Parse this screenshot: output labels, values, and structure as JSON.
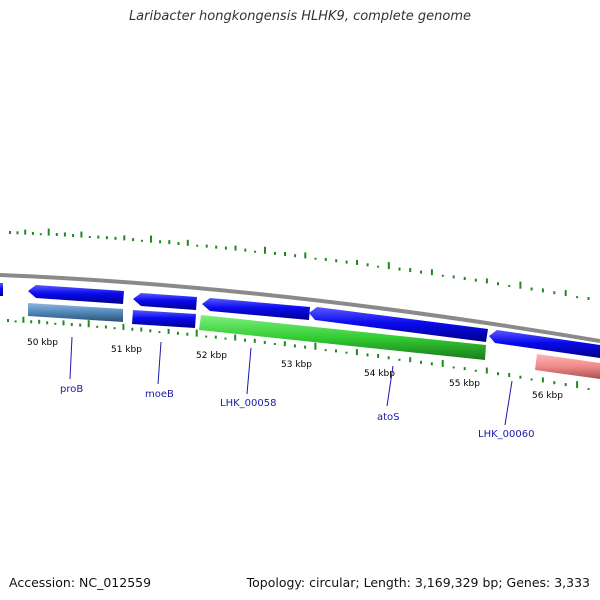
{
  "title": "Laribacter hongkongensis HLHK9, complete genome",
  "footer": {
    "accession": "Accession: NC_012559",
    "summary": "Topology: circular; Length: 3,169,329 bp; Genes: 3,333"
  },
  "colors": {
    "backbone": "#8a8a8a",
    "cds_forward": "#0a0aee",
    "cds_reverse": "#0a0aee",
    "gene_steel": "#4f87b8",
    "gene_green": "#33cc33",
    "gene_pink": "#f08a8a",
    "gc_ticks": "#1e8a1e",
    "label": "#1a1aa6"
  },
  "scale_ticks": [
    "50 kbp",
    "51 kbp",
    "52 kbp",
    "53 kbp",
    "54 kbp",
    "55 kbp",
    "56 kbp"
  ],
  "gene_labels": [
    "proB",
    "moeB",
    "LHK_00058",
    "atoS",
    "LHK_00060"
  ]
}
